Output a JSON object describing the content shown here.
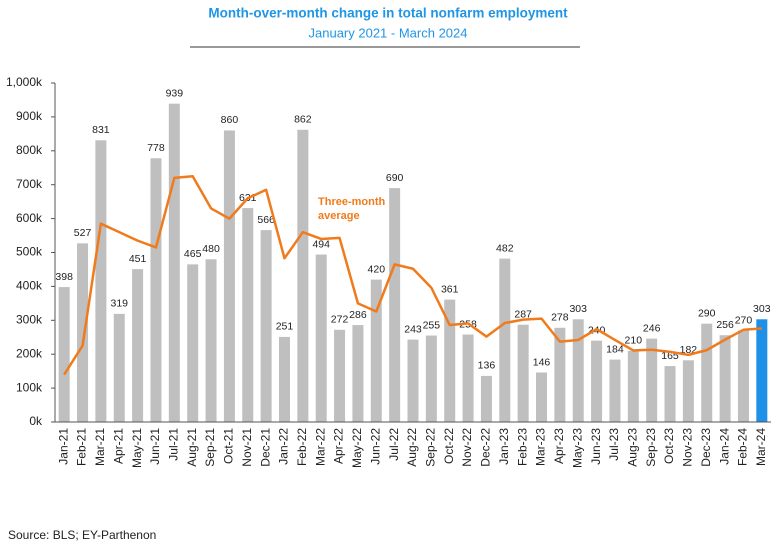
{
  "chart_data": {
    "type": "bar",
    "title": "Month-over-month change in total nonfarm employment",
    "subtitle": "January 2021 - March 2024",
    "source": "Source: BLS; EY-Parthenon",
    "categories": [
      "Jan-21",
      "Feb-21",
      "Mar-21",
      "Apr-21",
      "May-21",
      "Jun-21",
      "Jul-21",
      "Aug-21",
      "Sep-21",
      "Oct-21",
      "Nov-21",
      "Dec-21",
      "Jan-22",
      "Feb-22",
      "Mar-22",
      "Apr-22",
      "May-22",
      "Jun-22",
      "Jul-22",
      "Aug-22",
      "Sep-22",
      "Oct-22",
      "Nov-22",
      "Dec-22",
      "Jan-23",
      "Feb-23",
      "Mar-23",
      "Apr-23",
      "May-23",
      "Jun-23",
      "Jul-23",
      "Aug-23",
      "Sep-23",
      "Oct-23",
      "Nov-23",
      "Dec-23",
      "Jan-24",
      "Feb-24",
      "Mar-24"
    ],
    "values": [
      398,
      527,
      831,
      319,
      451,
      778,
      939,
      465,
      480,
      860,
      631,
      566,
      251,
      862,
      494,
      272,
      286,
      420,
      690,
      243,
      255,
      361,
      258,
      136,
      482,
      287,
      146,
      278,
      303,
      240,
      184,
      210,
      246,
      165,
      182,
      290,
      256,
      270,
      303
    ],
    "colors": [
      "#bfbfbf",
      "#bfbfbf",
      "#bfbfbf",
      "#bfbfbf",
      "#bfbfbf",
      "#bfbfbf",
      "#bfbfbf",
      "#bfbfbf",
      "#bfbfbf",
      "#bfbfbf",
      "#bfbfbf",
      "#bfbfbf",
      "#bfbfbf",
      "#bfbfbf",
      "#bfbfbf",
      "#bfbfbf",
      "#bfbfbf",
      "#bfbfbf",
      "#bfbfbf",
      "#bfbfbf",
      "#bfbfbf",
      "#bfbfbf",
      "#bfbfbf",
      "#bfbfbf",
      "#bfbfbf",
      "#bfbfbf",
      "#bfbfbf",
      "#bfbfbf",
      "#bfbfbf",
      "#bfbfbf",
      "#bfbfbf",
      "#bfbfbf",
      "#bfbfbf",
      "#bfbfbf",
      "#bfbfbf",
      "#bfbfbf",
      "#bfbfbf",
      "#bfbfbf",
      "#1e90e8"
    ],
    "line": {
      "name": "Three-month average",
      "color": "#f07b1c",
      "values": [
        140,
        225,
        585,
        560,
        535,
        515,
        720,
        725,
        630,
        600,
        660,
        685,
        483,
        560,
        540,
        543,
        350,
        326,
        465,
        452,
        396,
        286,
        291,
        252,
        292,
        302,
        305,
        237,
        242,
        274,
        242,
        211,
        213,
        207,
        198,
        212,
        243,
        272,
        276
      ]
    },
    "ylim": [
      0,
      1000
    ],
    "yticks": [
      {
        "value": 0,
        "label": "0k"
      },
      {
        "value": 100,
        "label": "100k"
      },
      {
        "value": 200,
        "label": "200k"
      },
      {
        "value": 300,
        "label": "300k"
      },
      {
        "value": 400,
        "label": "400k"
      },
      {
        "value": 500,
        "label": "500k"
      },
      {
        "value": 600,
        "label": "600k"
      },
      {
        "value": 700,
        "label": "700k"
      },
      {
        "value": 800,
        "label": "800k"
      },
      {
        "value": 900,
        "label": "900k"
      },
      {
        "value": 1000,
        "label": "1,000k"
      }
    ],
    "grid": false
  }
}
